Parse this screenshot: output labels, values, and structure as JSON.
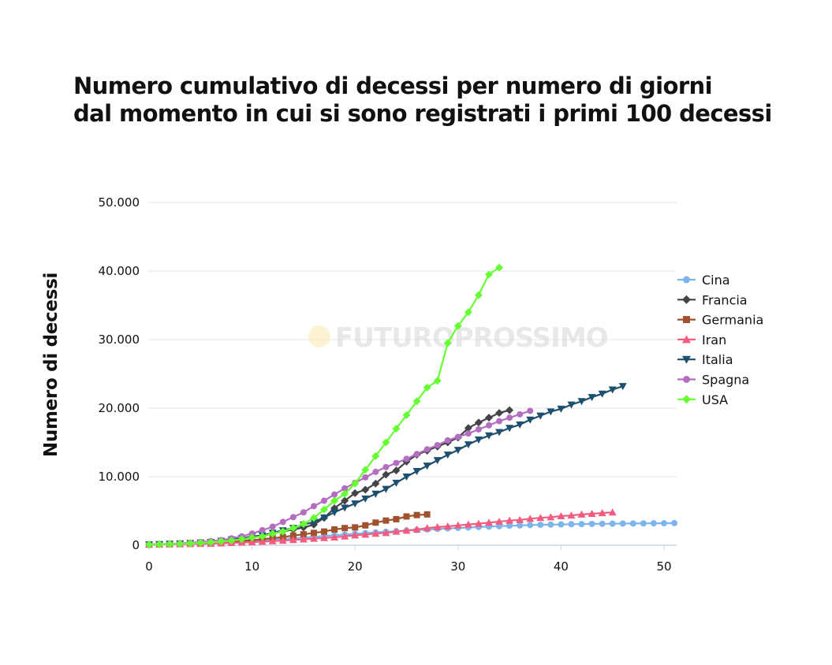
{
  "title_lines": [
    "Numero cumulativo di decessi per numero di giorni",
    "dal momento in cui si sono registrati i primi 100 decessi"
  ],
  "watermark": "FUTUROPROSSIMO",
  "chart_data": {
    "type": "line",
    "title": "Numero cumulativo di decessi per numero di giorni dal momento in cui si sono registrati i primi 100 decessi",
    "xlabel": "",
    "ylabel": "Numero di decessi",
    "xlim": [
      0,
      51
    ],
    "ylim": [
      0,
      50000
    ],
    "x_ticks": [
      0,
      10,
      20,
      30,
      40,
      50
    ],
    "x_tick_labels": [
      "0",
      "10",
      "20",
      "30",
      "40",
      "50"
    ],
    "y_ticks": [
      0,
      10000,
      20000,
      30000,
      40000,
      50000
    ],
    "y_tick_labels": [
      "0",
      "10.000",
      "20.000",
      "30.000",
      "40.000",
      "50.000"
    ],
    "grid": "horizontal",
    "legend_position": "right",
    "series": [
      {
        "name": "Cina",
        "color": "#7cb5ec",
        "marker": "circle",
        "values": [
          100,
          130,
          170,
          210,
          260,
          310,
          360,
          420,
          490,
          560,
          640,
          720,
          810,
          910,
          1010,
          1110,
          1210,
          1330,
          1450,
          1560,
          1670,
          1770,
          1870,
          1960,
          2050,
          2140,
          2220,
          2300,
          2380,
          2450,
          2520,
          2590,
          2660,
          2720,
          2780,
          2840,
          2890,
          2940,
          2980,
          3010,
          3040,
          3070,
          3090,
          3110,
          3130,
          3140,
          3160,
          3170,
          3190,
          3200,
          3210,
          3230
        ]
      },
      {
        "name": "Francia",
        "color": "#434348",
        "marker": "diamond",
        "values": [
          100,
          140,
          180,
          230,
          290,
          380,
          450,
          560,
          680,
          860,
          1100,
          1330,
          1700,
          2000,
          2300,
          2600,
          3000,
          4000,
          5400,
          6500,
          7600,
          8100,
          9000,
          10300,
          10900,
          12200,
          13200,
          13800,
          14400,
          15000,
          15700,
          17100,
          17900,
          18600,
          19300,
          19700
        ]
      },
      {
        "name": "Germania",
        "color": "#a0522d",
        "marker": "square",
        "values": [
          100,
          130,
          160,
          200,
          250,
          300,
          360,
          430,
          520,
          620,
          730,
          870,
          1030,
          1200,
          1400,
          1600,
          1800,
          2000,
          2300,
          2500,
          2600,
          2900,
          3300,
          3600,
          3800,
          4200,
          4400,
          4500
        ]
      },
      {
        "name": "Iran",
        "color": "#f15c80",
        "marker": "triangle-up",
        "values": [
          100,
          120,
          140,
          160,
          180,
          210,
          240,
          290,
          340,
          400,
          450,
          520,
          600,
          680,
          770,
          860,
          960,
          1060,
          1150,
          1300,
          1450,
          1560,
          1700,
          1800,
          2000,
          2140,
          2300,
          2500,
          2650,
          2760,
          2900,
          3030,
          3150,
          3300,
          3450,
          3600,
          3700,
          3870,
          4000,
          4100,
          4250,
          4350,
          4500,
          4600,
          4700,
          4800
        ]
      },
      {
        "name": "Italia",
        "color": "#1d4f6f",
        "marker": "triangle-down",
        "values": [
          100,
          150,
          200,
          250,
          300,
          370,
          460,
          630,
          830,
          1020,
          1270,
          1440,
          1800,
          2160,
          2500,
          3000,
          3400,
          4030,
          4800,
          5470,
          6080,
          6800,
          7500,
          8200,
          9100,
          10000,
          10800,
          11600,
          12400,
          13200,
          13900,
          14700,
          15400,
          16000,
          16500,
          17100,
          17600,
          18300,
          18900,
          19500,
          19900,
          20500,
          21000,
          21600,
          22100,
          22700,
          23200
        ]
      },
      {
        "name": "Spagna",
        "color": "#b46ec0",
        "marker": "circle",
        "values": [
          100,
          150,
          200,
          280,
          350,
          480,
          600,
          750,
          1000,
          1300,
          1700,
          2200,
          2700,
          3400,
          4100,
          4800,
          5700,
          6500,
          7400,
          8300,
          9100,
          9900,
          10700,
          11400,
          12000,
          12600,
          13300,
          14000,
          14600,
          15300,
          15800,
          16300,
          16900,
          17500,
          18100,
          18600,
          19100,
          19600
        ]
      },
      {
        "name": "USA",
        "color": "#66ff33",
        "marker": "diamond",
        "values": [
          100,
          130,
          160,
          200,
          260,
          340,
          430,
          540,
          680,
          870,
          1100,
          1300,
          1700,
          2000,
          2500,
          3100,
          4000,
          5200,
          6500,
          7500,
          9000,
          11000,
          13000,
          15000,
          17000,
          19000,
          21000,
          23000,
          24000,
          29500,
          32000,
          34000,
          36500,
          39500,
          40500
        ]
      }
    ]
  }
}
